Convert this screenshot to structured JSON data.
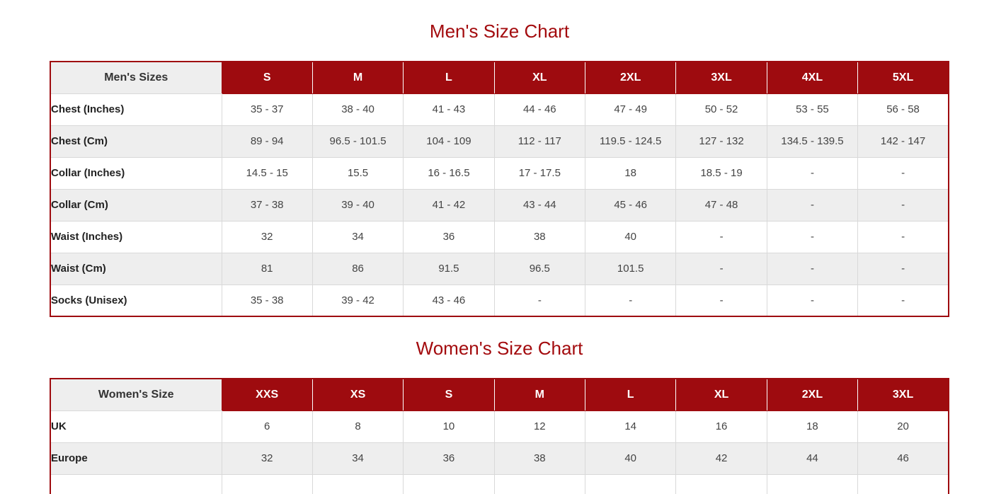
{
  "colors": {
    "table_header_red": "#9e0b0f",
    "title_red": "#a30b0e",
    "zebra_row_gray": "#eeeeee",
    "corner_cell_gray": "#eeeeee",
    "cell_border_gray": "#d9d9d9",
    "header_text_white": "#ffffff",
    "label_text": "#222222",
    "value_text": "#444444"
  },
  "mens_chart": {
    "title": "Men's Size Chart",
    "corner_label": "Men's Sizes",
    "columns": [
      "S",
      "M",
      "L",
      "XL",
      "2XL",
      "3XL",
      "4XL",
      "5XL"
    ],
    "rows": [
      {
        "label": "Chest (Inches)",
        "values": [
          "35 - 37",
          "38 - 40",
          "41 - 43",
          "44 - 46",
          "47 - 49",
          "50 - 52",
          "53 - 55",
          "56 - 58"
        ]
      },
      {
        "label": "Chest (Cm)",
        "values": [
          "89 - 94",
          "96.5 - 101.5",
          "104 - 109",
          "112 - 117",
          "119.5 - 124.5",
          "127 - 132",
          "134.5 - 139.5",
          "142 - 147"
        ]
      },
      {
        "label": "Collar (Inches)",
        "values": [
          "14.5 - 15",
          "15.5",
          "16 - 16.5",
          "17 - 17.5",
          "18",
          "18.5 - 19",
          "-",
          "-"
        ]
      },
      {
        "label": "Collar (Cm)",
        "values": [
          "37 - 38",
          "39 - 40",
          "41 - 42",
          "43 - 44",
          "45 - 46",
          "47 - 48",
          "-",
          "-"
        ]
      },
      {
        "label": "Waist (Inches)",
        "values": [
          "32",
          "34",
          "36",
          "38",
          "40",
          "-",
          "-",
          "-"
        ]
      },
      {
        "label": "Waist (Cm)",
        "values": [
          "81",
          "86",
          "91.5",
          "96.5",
          "101.5",
          "-",
          "-",
          "-"
        ]
      },
      {
        "label": "Socks (Unisex)",
        "values": [
          "35 - 38",
          "39 - 42",
          "43 - 46",
          "-",
          "-",
          "-",
          "-",
          "-"
        ]
      }
    ],
    "has_clipped_row": false
  },
  "womens_chart": {
    "title": "Women's Size Chart",
    "corner_label": "Women's Size",
    "columns": [
      "XXS",
      "XS",
      "S",
      "M",
      "L",
      "XL",
      "2XL",
      "3XL"
    ],
    "rows": [
      {
        "label": "UK",
        "values": [
          "6",
          "8",
          "10",
          "12",
          "14",
          "16",
          "18",
          "20"
        ]
      },
      {
        "label": "Europe",
        "values": [
          "32",
          "34",
          "36",
          "38",
          "40",
          "42",
          "44",
          "46"
        ]
      }
    ],
    "has_clipped_row": true
  }
}
